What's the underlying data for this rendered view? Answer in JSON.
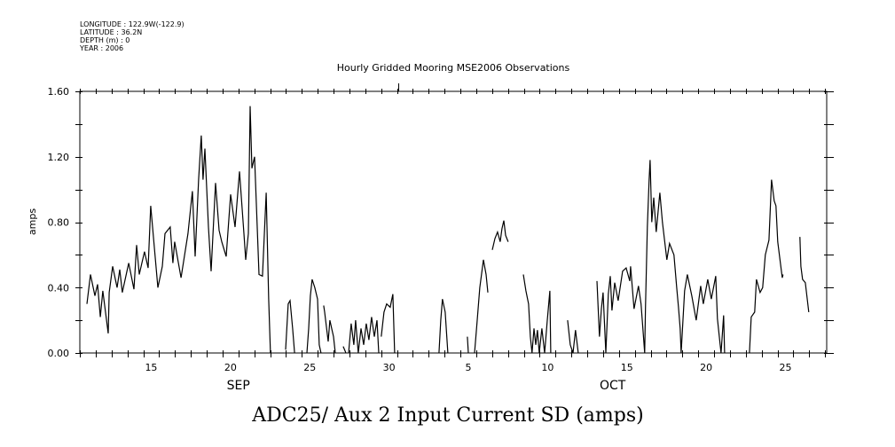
{
  "header": {
    "longitude": "LONGITUDE : 122.9W(-122.9)",
    "latitude": "LATITUDE : 36.2N",
    "depth": "DEPTH (m) : 0",
    "year": "YEAR : 2006"
  },
  "chart_data": {
    "type": "line",
    "title": "Hourly Gridded Mooring MSE2006 Observations",
    "caption": "ADC25/ Aux 2 Input Current SD (amps)",
    "ylabel": "amps",
    "xlabel": "",
    "x_units": "days since Sep 11 2006 00:00",
    "xlim": [
      0,
      47.1
    ],
    "ylim": [
      0,
      1.6
    ],
    "yticks": [
      {
        "v": 0,
        "label": "0.00"
      },
      {
        "v": 0.4,
        "label": "0.40"
      },
      {
        "v": 0.8,
        "label": "0.80"
      },
      {
        "v": 1.2,
        "label": "1.20"
      },
      {
        "v": 1.6,
        "label": "1.60"
      }
    ],
    "xtick_labels": [
      {
        "day": 4.5,
        "label": "15"
      },
      {
        "day": 9.5,
        "label": "20"
      },
      {
        "day": 14.5,
        "label": "25"
      },
      {
        "day": 19.5,
        "label": "30"
      },
      {
        "day": 24.5,
        "label": "5"
      },
      {
        "day": 29.5,
        "label": "10"
      },
      {
        "day": 34.5,
        "label": "15"
      },
      {
        "day": 39.5,
        "label": "20"
      },
      {
        "day": 44.5,
        "label": "25"
      }
    ],
    "month_labels": [
      {
        "day": 10,
        "label": "SEP"
      },
      {
        "day": 33.6,
        "label": "OCT"
      }
    ],
    "color": "#000000",
    "segments": [
      [
        [
          0.45,
          0.3
        ],
        [
          0.67,
          0.48
        ],
        [
          0.95,
          0.35
        ],
        [
          1.12,
          0.42
        ],
        [
          1.29,
          0.22
        ],
        [
          1.45,
          0.38
        ],
        [
          1.79,
          0.12
        ],
        [
          1.85,
          0.37
        ],
        [
          2.07,
          0.53
        ],
        [
          2.35,
          0.4
        ],
        [
          2.52,
          0.51
        ],
        [
          2.68,
          0.37
        ],
        [
          3.08,
          0.55
        ],
        [
          3.41,
          0.39
        ],
        [
          3.58,
          0.66
        ],
        [
          3.75,
          0.48
        ],
        [
          4.08,
          0.62
        ],
        [
          4.31,
          0.52
        ],
        [
          4.47,
          0.9
        ],
        [
          4.75,
          0.59
        ],
        [
          4.92,
          0.4
        ],
        [
          5.2,
          0.53
        ],
        [
          5.37,
          0.73
        ],
        [
          5.7,
          0.77
        ],
        [
          5.87,
          0.55
        ],
        [
          5.98,
          0.68
        ],
        [
          6.38,
          0.46
        ],
        [
          6.82,
          0.73
        ],
        [
          7.1,
          0.99
        ],
        [
          7.27,
          0.59
        ],
        [
          7.49,
          1.06
        ],
        [
          7.66,
          1.33
        ],
        [
          7.77,
          1.06
        ],
        [
          7.89,
          1.25
        ],
        [
          8.11,
          0.77
        ],
        [
          8.28,
          0.5
        ],
        [
          8.56,
          1.04
        ],
        [
          8.78,
          0.75
        ],
        [
          8.95,
          0.68
        ],
        [
          9.23,
          0.59
        ],
        [
          9.51,
          0.97
        ],
        [
          9.79,
          0.77
        ],
        [
          10.07,
          1.11
        ],
        [
          10.35,
          0.73
        ],
        [
          10.46,
          0.57
        ],
        [
          10.63,
          0.73
        ],
        [
          10.74,
          1.51
        ],
        [
          10.85,
          1.13
        ],
        [
          11.02,
          1.2
        ],
        [
          11.3,
          0.48
        ],
        [
          11.52,
          0.47
        ],
        [
          11.75,
          0.98
        ],
        [
          11.91,
          0.33
        ],
        [
          12.02,
          0.0
        ]
      ],
      [
        [
          12.98,
          0.02
        ],
        [
          13.14,
          0.3
        ],
        [
          13.26,
          0.32
        ],
        [
          13.42,
          0.15
        ],
        [
          13.54,
          0.0
        ]
      ],
      [
        [
          14.32,
          0.0
        ],
        [
          14.43,
          0.15
        ],
        [
          14.54,
          0.35
        ],
        [
          14.65,
          0.45
        ],
        [
          14.82,
          0.4
        ],
        [
          14.99,
          0.33
        ],
        [
          15.1,
          0.05
        ],
        [
          15.21,
          0.0
        ]
      ],
      [
        [
          15.38,
          0.29
        ],
        [
          15.44,
          0.25
        ],
        [
          15.66,
          0.07
        ],
        [
          15.77,
          0.2
        ],
        [
          15.88,
          0.15
        ],
        [
          16.0,
          0.1
        ],
        [
          16.11,
          0.0
        ]
      ],
      [
        [
          16.61,
          0.04
        ],
        [
          16.78,
          0.0
        ]
      ],
      [
        [
          16.95,
          0.0
        ],
        [
          17.11,
          0.18
        ],
        [
          17.28,
          0.05
        ],
        [
          17.39,
          0.2
        ],
        [
          17.56,
          0.0
        ],
        [
          17.73,
          0.15
        ],
        [
          17.9,
          0.05
        ],
        [
          18.06,
          0.18
        ],
        [
          18.23,
          0.08
        ],
        [
          18.4,
          0.22
        ],
        [
          18.57,
          0.1
        ],
        [
          18.74,
          0.2
        ],
        [
          18.85,
          0.0
        ]
      ],
      [
        [
          19.01,
          0.1
        ],
        [
          19.18,
          0.25
        ],
        [
          19.35,
          0.3
        ],
        [
          19.57,
          0.28
        ],
        [
          19.74,
          0.36
        ],
        [
          19.85,
          0.0
        ]
      ],
      [
        [
          22.65,
          0.0
        ],
        [
          22.76,
          0.2
        ],
        [
          22.87,
          0.33
        ],
        [
          23.04,
          0.25
        ],
        [
          23.21,
          0.0
        ]
      ],
      [
        [
          24.44,
          0.1
        ],
        [
          24.5,
          0.0
        ]
      ],
      [
        [
          24.89,
          0.0
        ],
        [
          25.06,
          0.2
        ],
        [
          25.22,
          0.4
        ],
        [
          25.45,
          0.57
        ],
        [
          25.62,
          0.48
        ],
        [
          25.73,
          0.37
        ]
      ],
      [
        [
          26.01,
          0.63
        ],
        [
          26.18,
          0.7
        ],
        [
          26.34,
          0.74
        ],
        [
          26.51,
          0.68
        ],
        [
          26.62,
          0.76
        ],
        [
          26.74,
          0.81
        ],
        [
          26.85,
          0.72
        ],
        [
          27.01,
          0.68
        ]
      ],
      [
        [
          27.97,
          0.48
        ],
        [
          28.13,
          0.38
        ],
        [
          28.3,
          0.3
        ],
        [
          28.41,
          0.1
        ],
        [
          28.52,
          0.0
        ],
        [
          28.64,
          0.15
        ],
        [
          28.75,
          0.05
        ],
        [
          28.86,
          0.14
        ],
        [
          28.97,
          0.0
        ],
        [
          29.14,
          0.15
        ],
        [
          29.31,
          0.0
        ],
        [
          29.48,
          0.2
        ],
        [
          29.64,
          0.38
        ],
        [
          29.7,
          0.0
        ]
      ],
      [
        [
          30.76,
          0.2
        ],
        [
          30.93,
          0.05
        ],
        [
          31.1,
          0.0
        ],
        [
          31.26,
          0.14
        ],
        [
          31.43,
          0.0
        ]
      ],
      [
        [
          32.61,
          0.44
        ],
        [
          32.77,
          0.1
        ],
        [
          32.89,
          0.27
        ],
        [
          33.0,
          0.37
        ],
        [
          33.17,
          0.0
        ],
        [
          33.33,
          0.36
        ],
        [
          33.45,
          0.47
        ],
        [
          33.56,
          0.26
        ],
        [
          33.73,
          0.43
        ],
        [
          33.95,
          0.32
        ],
        [
          34.23,
          0.5
        ],
        [
          34.45,
          0.52
        ],
        [
          34.68,
          0.44
        ],
        [
          34.73,
          0.53
        ],
        [
          34.95,
          0.27
        ],
        [
          35.23,
          0.41
        ],
        [
          35.39,
          0.3
        ],
        [
          35.62,
          0.0
        ],
        [
          35.67,
          0.28
        ],
        [
          35.79,
          0.77
        ],
        [
          35.9,
          1.06
        ],
        [
          35.96,
          1.18
        ],
        [
          36.07,
          0.8
        ],
        [
          36.19,
          0.95
        ],
        [
          36.35,
          0.74
        ],
        [
          36.58,
          0.98
        ],
        [
          36.74,
          0.8
        ],
        [
          37.02,
          0.57
        ],
        [
          37.19,
          0.67
        ],
        [
          37.47,
          0.6
        ],
        [
          37.64,
          0.4
        ],
        [
          37.75,
          0.28
        ],
        [
          37.86,
          0.15
        ],
        [
          37.92,
          0.0
        ],
        [
          38.14,
          0.38
        ],
        [
          38.31,
          0.48
        ],
        [
          38.59,
          0.35
        ],
        [
          38.87,
          0.2
        ],
        [
          39.15,
          0.41
        ],
        [
          39.32,
          0.3
        ],
        [
          39.6,
          0.45
        ],
        [
          39.82,
          0.33
        ],
        [
          40.1,
          0.47
        ],
        [
          40.21,
          0.21
        ],
        [
          40.38,
          0.05
        ],
        [
          40.44,
          0.0
        ],
        [
          40.6,
          0.23
        ],
        [
          40.66,
          0.0
        ]
      ],
      [
        [
          42.23,
          0.0
        ],
        [
          42.34,
          0.22
        ],
        [
          42.56,
          0.25
        ],
        [
          42.67,
          0.45
        ],
        [
          42.9,
          0.37
        ],
        [
          43.06,
          0.4
        ],
        [
          43.23,
          0.6
        ],
        [
          43.46,
          0.69
        ],
        [
          43.62,
          1.06
        ],
        [
          43.79,
          0.93
        ],
        [
          43.9,
          0.9
        ],
        [
          44.01,
          0.68
        ],
        [
          44.18,
          0.55
        ],
        [
          44.3,
          0.46
        ],
        [
          44.35,
          0.48
        ]
      ],
      [
        [
          45.41,
          0.71
        ],
        [
          45.47,
          0.53
        ],
        [
          45.58,
          0.45
        ],
        [
          45.75,
          0.43
        ],
        [
          45.97,
          0.25
        ]
      ]
    ]
  }
}
